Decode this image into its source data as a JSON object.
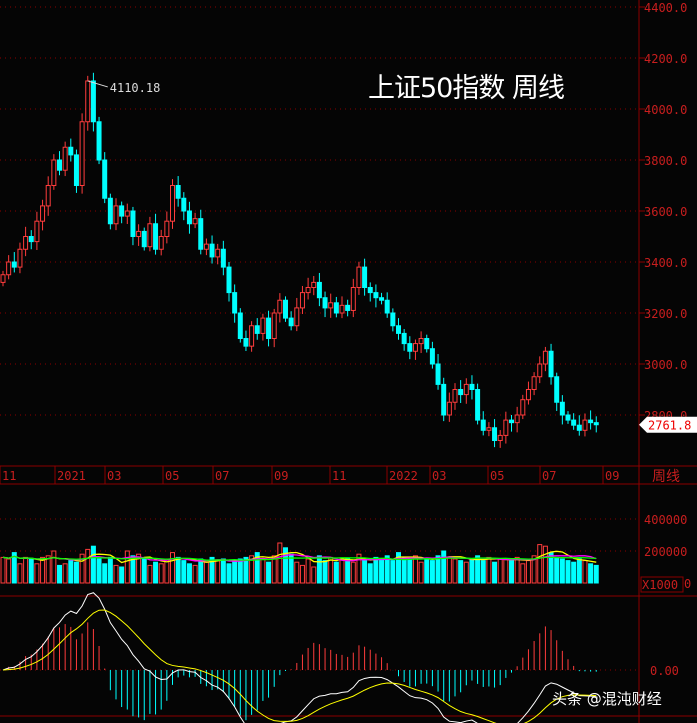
{
  "title": "上证50指数 周线",
  "watermark": "头条 @混沌财经",
  "period_label": "周线",
  "last_price_label": "2761.8",
  "peak_label": "4110.18",
  "volume_unit": "X1000",
  "colors": {
    "up": "#ff3c3c",
    "down": "#00ffff",
    "grid": "#8b0000",
    "axis_text": "#c81e1e",
    "ma5": "#ffffff",
    "ma10": "#ffff00",
    "ma20": "#ff00ff",
    "ma60": "#00ff00"
  },
  "chart_data": {
    "type": "candlestick",
    "title": "上证50指数 周线",
    "price_ticks": [
      "4400.0",
      "4200.0",
      "4000.0",
      "3800.0",
      "3600.0",
      "3400.0",
      "3200.0",
      "3000.0",
      "2800.0"
    ],
    "price_range": [
      2661,
      4400
    ],
    "month_labels": [
      "11",
      "2021",
      "03",
      "05",
      "07",
      "09",
      "11",
      "2022",
      "03",
      "05",
      "07",
      "09"
    ],
    "volume_ticks": [
      "400000",
      "200000",
      "0"
    ],
    "macd_ticks": [
      "0.00"
    ],
    "closes": [
      3350,
      3400,
      3380,
      3450,
      3500,
      3480,
      3560,
      3620,
      3700,
      3800,
      3760,
      3850,
      3820,
      3700,
      3950,
      4110,
      3950,
      3800,
      3650,
      3550,
      3620,
      3580,
      3600,
      3500,
      3520,
      3460,
      3550,
      3450,
      3500,
      3560,
      3700,
      3650,
      3600,
      3550,
      3570,
      3450,
      3470,
      3420,
      3450,
      3380,
      3280,
      3200,
      3100,
      3070,
      3150,
      3120,
      3180,
      3100,
      3200,
      3250,
      3180,
      3150,
      3220,
      3280,
      3300,
      3320,
      3260,
      3220,
      3240,
      3200,
      3230,
      3210,
      3300,
      3380,
      3300,
      3280,
      3260,
      3250,
      3200,
      3150,
      3120,
      3080,
      3050,
      3080,
      3100,
      3060,
      3000,
      2920,
      2800,
      2850,
      2900,
      2880,
      2920,
      2900,
      2780,
      2740,
      2750,
      2700,
      2720,
      2780,
      2770,
      2800,
      2860,
      2900,
      2950,
      3000,
      3050,
      2950,
      2850,
      2800,
      2780,
      2760,
      2740,
      2780,
      2770,
      2761.8
    ],
    "volumes": [
      160,
      150,
      190,
      120,
      160,
      150,
      120,
      160,
      170,
      200,
      110,
      120,
      140,
      130,
      180,
      210,
      230,
      150,
      120,
      160,
      110,
      100,
      200,
      170,
      180,
      150,
      110,
      130,
      120,
      150,
      190,
      160,
      140,
      120,
      110,
      150,
      130,
      160,
      140,
      150,
      120,
      140,
      150,
      160,
      170,
      190,
      150,
      130,
      170,
      250,
      220,
      180,
      130,
      110,
      150,
      100,
      170,
      140,
      160,
      130,
      150,
      150,
      130,
      180,
      140,
      120,
      160,
      150,
      170,
      140,
      190,
      160,
      150,
      170,
      130,
      150,
      140,
      170,
      200,
      160,
      150,
      140,
      130,
      150,
      170,
      140,
      160,
      130,
      150,
      150,
      140,
      160,
      120,
      140,
      170,
      240,
      230,
      190,
      160,
      150,
      140,
      130,
      150,
      140,
      120,
      110
    ]
  }
}
